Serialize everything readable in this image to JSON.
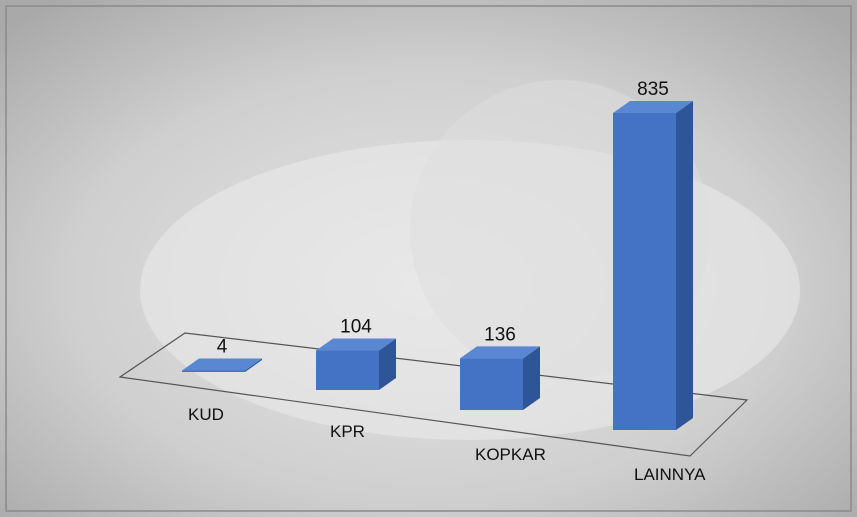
{
  "chart_data": {
    "type": "bar3d",
    "categories": [
      "KUD",
      "KPR",
      "KOPKAR",
      "LAINNYA"
    ],
    "values": [
      4,
      104,
      136,
      835
    ],
    "color": "#4472c4"
  }
}
